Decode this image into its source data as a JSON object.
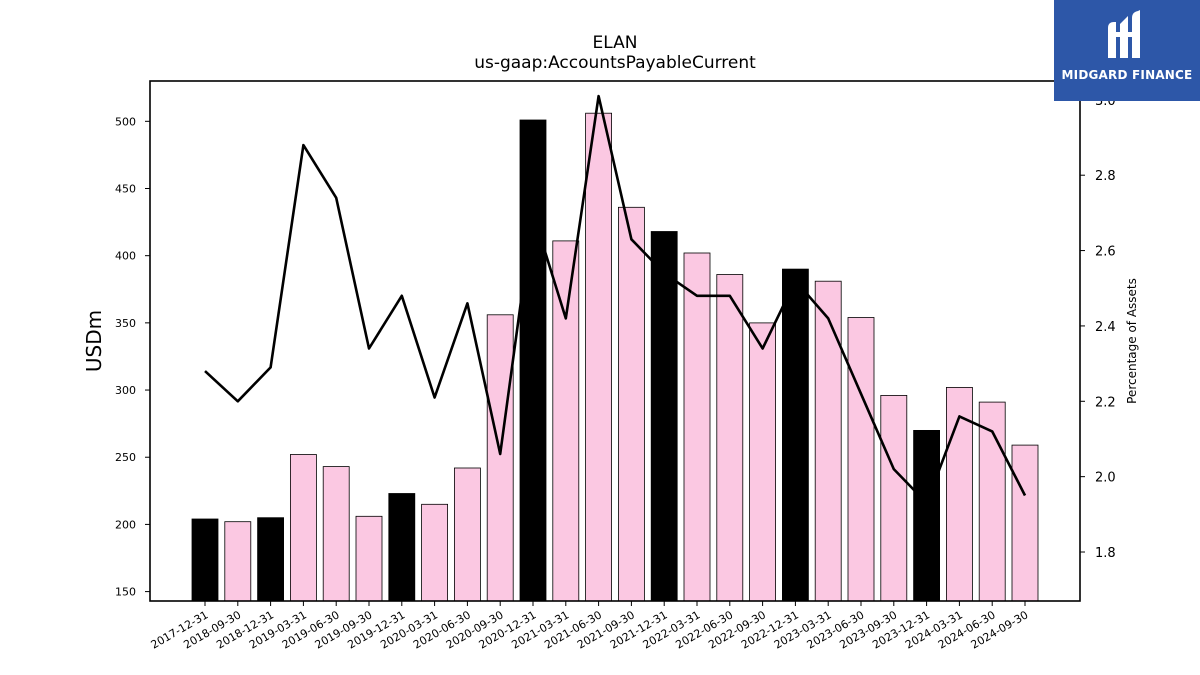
{
  "logo": {
    "text": "MIDGARD FINANCE",
    "color": "#2d57a8"
  },
  "chart_data": {
    "type": "bar",
    "title": "ELAN",
    "subtitle": "us-gaap:AccountsPayableCurrent",
    "ylabel": "USDm",
    "y2label": "Percentage of Assets",
    "ylim": [
      143,
      530
    ],
    "y2lim": [
      1.67,
      3.05
    ],
    "yticks": [
      150,
      200,
      250,
      300,
      350,
      400,
      450,
      500
    ],
    "y2ticks": [
      1.8,
      2.0,
      2.2,
      2.4,
      2.6,
      2.8,
      3.0
    ],
    "grid": false,
    "colors": {
      "q4_bar": "#000000",
      "other_bar": "#fbc8e2",
      "line": "#000000"
    },
    "categories": [
      "2017-12-31",
      "2018-09-30",
      "2018-12-31",
      "2019-03-31",
      "2019-06-30",
      "2019-09-30",
      "2019-12-31",
      "2020-03-31",
      "2020-06-30",
      "2020-09-30",
      "2020-12-31",
      "2021-03-31",
      "2021-06-30",
      "2021-09-30",
      "2021-12-31",
      "2022-03-31",
      "2022-06-30",
      "2022-09-30",
      "2022-12-31",
      "2023-03-31",
      "2023-06-30",
      "2023-09-30",
      "2023-12-31",
      "2024-03-31",
      "2024-06-30",
      "2024-09-30"
    ],
    "series": [
      {
        "values": [
          204,
          202,
          205,
          252,
          243,
          206,
          223,
          215,
          242,
          356,
          501,
          411,
          506,
          436,
          418,
          402,
          386,
          350,
          390,
          381,
          354,
          296,
          270,
          302,
          291,
          259
        ]
      },
      {
        "values": [
          2.28,
          2.2,
          2.29,
          2.88,
          2.74,
          2.34,
          2.48,
          2.21,
          2.46,
          2.06,
          2.7,
          2.42,
          3.01,
          2.63,
          2.54,
          2.48,
          2.48,
          2.34,
          2.52,
          2.42,
          2.22,
          2.02,
          1.93,
          2.16,
          2.12,
          1.95
        ]
      }
    ]
  }
}
